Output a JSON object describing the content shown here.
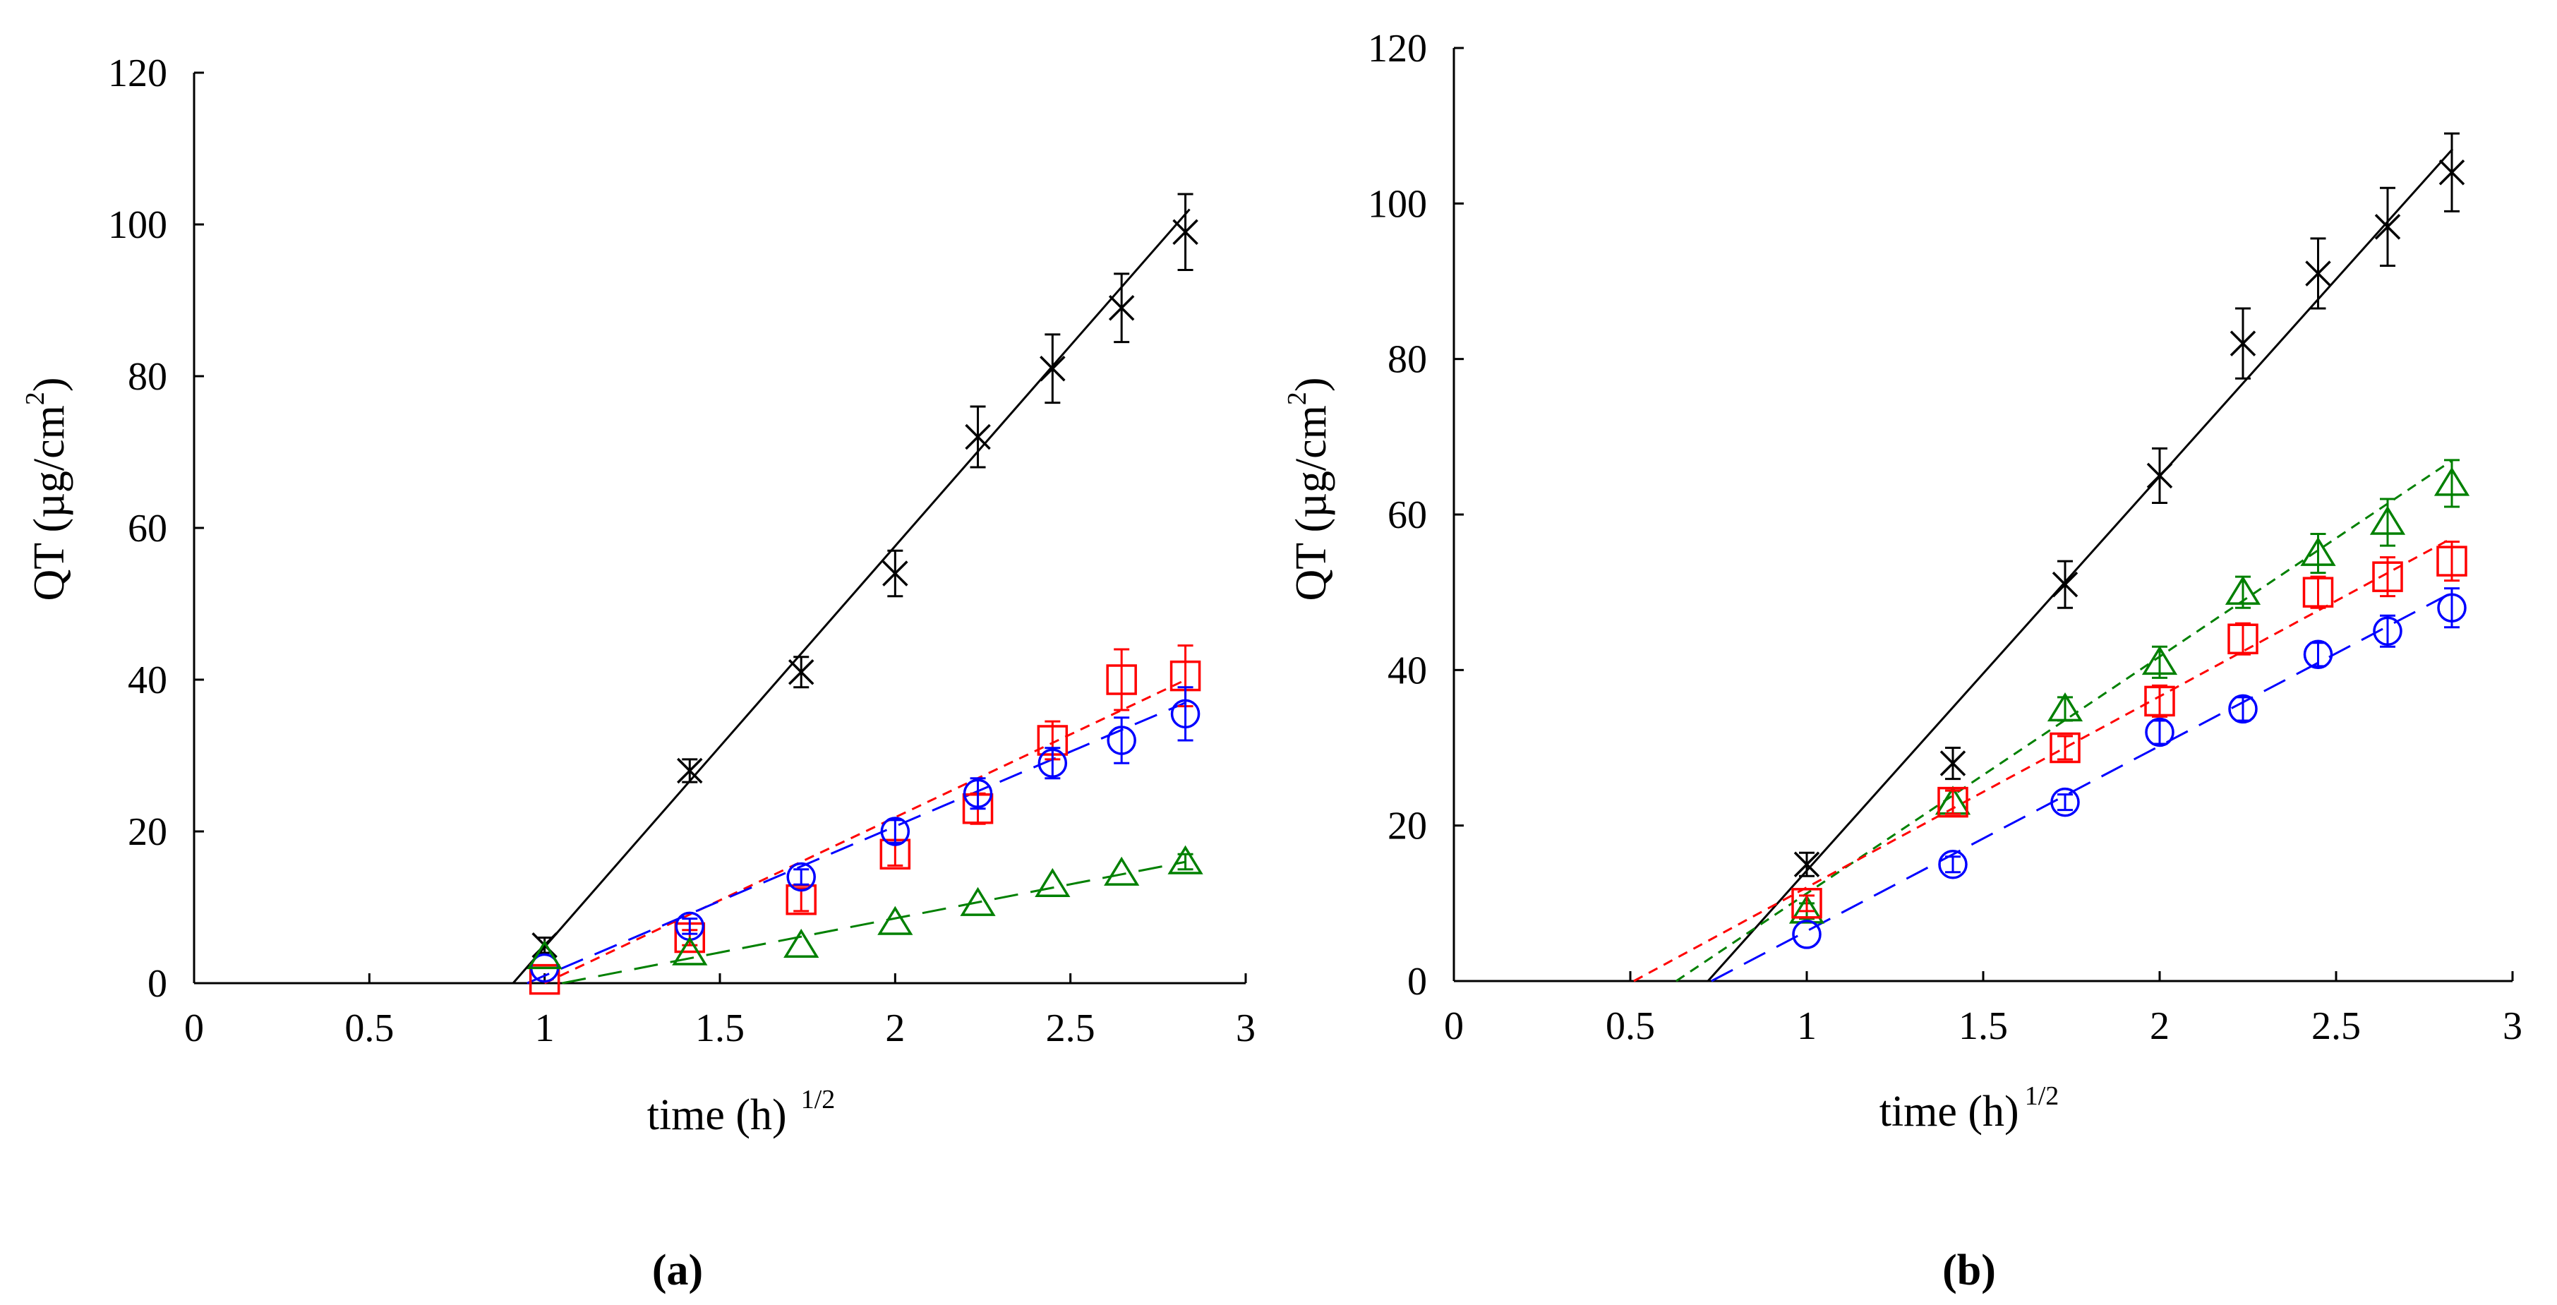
{
  "chart_data": [
    {
      "type": "scatter",
      "panel_label": "(a)",
      "xlabel": "time (h)",
      "xlabel_sup": "1/2",
      "ylabel": "QT (µg/cm",
      "ylabel_sup": "2",
      "ylabel_close": ")",
      "xlim": [
        0,
        3
      ],
      "ylim": [
        0,
        120
      ],
      "xticks": [
        "0",
        "0.5",
        "1",
        "1.5",
        "2",
        "2.5",
        "3"
      ],
      "yticks": [
        "0",
        "20",
        "40",
        "60",
        "80",
        "100",
        "120"
      ],
      "x": [
        1,
        1.414,
        1.732,
        2,
        2.236,
        2.449,
        2.646,
        2.828
      ],
      "series": [
        {
          "name": "black",
          "marker": "x",
          "color": "#000000",
          "dash": "none",
          "values": [
            5,
            28,
            41,
            54,
            72,
            81,
            89,
            99
          ],
          "errors": [
            1,
            1.5,
            2,
            3,
            4,
            4.5,
            4.5,
            5
          ],
          "fit": [
            [
              0.91,
              0
            ],
            [
              2.84,
              102
            ]
          ]
        },
        {
          "name": "red",
          "marker": "square",
          "color": "#ff0000",
          "dash": "short",
          "values": [
            0.5,
            6,
            11,
            17,
            23,
            32,
            40,
            40.5
          ],
          "errors": [
            0.5,
            1,
            1.5,
            1.5,
            2,
            2.5,
            4,
            4
          ],
          "fit": [
            [
              1,
              0
            ],
            [
              2.83,
              40
            ]
          ]
        },
        {
          "name": "blue",
          "marker": "circle",
          "color": "#0000ff",
          "dash": "long",
          "values": [
            2,
            7.5,
            14,
            20,
            25,
            29,
            32,
            35.5
          ],
          "errors": [
            0.5,
            1,
            1,
            1.5,
            2,
            2,
            3,
            3.5
          ],
          "fit": [
            [
              0.95,
              0
            ],
            [
              2.83,
              37
            ]
          ]
        },
        {
          "name": "green",
          "marker": "triangle",
          "color": "#008000",
          "dash": "long",
          "values": [
            3.5,
            4,
            5,
            8,
            10.5,
            13,
            14.5,
            16
          ],
          "errors": [
            0.5,
            0.5,
            0.5,
            0.5,
            0.5,
            0.5,
            0.5,
            1
          ],
          "fit": [
            [
              1.05,
              0
            ],
            [
              2.83,
              16
            ]
          ]
        }
      ]
    },
    {
      "type": "scatter",
      "panel_label": "(b)",
      "xlabel": "time (h)",
      "xlabel_sup": "1/2",
      "ylabel": "QT (µg/cm",
      "ylabel_sup": "2",
      "ylabel_close": ")",
      "xlim": [
        0,
        3
      ],
      "ylim": [
        0,
        120
      ],
      "xticks": [
        "0",
        "0.5",
        "1",
        "1.5",
        "2",
        "2.5",
        "3"
      ],
      "yticks": [
        "0",
        "20",
        "40",
        "60",
        "80",
        "100",
        "120"
      ],
      "x": [
        1,
        1.414,
        1.732,
        2,
        2.236,
        2.449,
        2.646,
        2.828
      ],
      "series": [
        {
          "name": "black",
          "marker": "x",
          "color": "#000000",
          "dash": "none",
          "values": [
            15,
            28,
            51,
            65,
            82,
            91,
            97,
            104
          ],
          "errors": [
            1.5,
            2,
            3,
            3.5,
            4.5,
            4.5,
            5,
            5
          ],
          "fit": [
            [
              0.72,
              0
            ],
            [
              2.83,
              107
            ]
          ]
        },
        {
          "name": "green",
          "marker": "triangle",
          "color": "#008000",
          "dash": "short",
          "values": [
            9,
            23,
            35,
            41,
            50,
            55,
            59,
            64
          ],
          "errors": [
            1,
            1.5,
            1.5,
            2,
            2,
            2.5,
            3,
            3
          ],
          "fit": [
            [
              0.63,
              0
            ],
            [
              2.83,
              67
            ]
          ]
        },
        {
          "name": "red",
          "marker": "square",
          "color": "#ff0000",
          "dash": "short",
          "values": [
            10,
            23,
            30,
            36,
            44,
            50,
            52,
            54
          ],
          "errors": [
            1,
            1.5,
            1.5,
            2,
            2,
            2,
            2.5,
            2.5
          ],
          "fit": [
            [
              0.51,
              0
            ],
            [
              2.83,
              57
            ]
          ]
        },
        {
          "name": "blue",
          "marker": "circle",
          "color": "#0000ff",
          "dash": "long",
          "values": [
            6,
            15,
            23,
            32,
            35,
            42,
            45,
            48
          ],
          "errors": [
            0.5,
            1,
            1,
            1.5,
            1.5,
            1.5,
            2,
            2.5
          ],
          "fit": [
            [
              0.73,
              0
            ],
            [
              2.83,
              50
            ]
          ]
        }
      ]
    }
  ]
}
